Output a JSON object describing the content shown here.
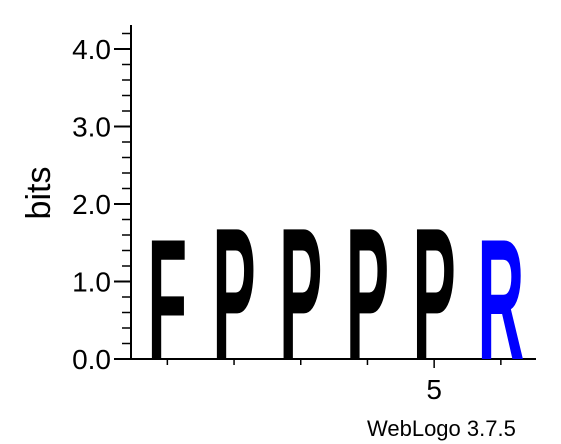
{
  "chart_data": {
    "type": "sequence-logo",
    "ylabel": "bits",
    "ylim": [
      0,
      4.3
    ],
    "y_ticks": [
      {
        "value": 0.0,
        "label": "0.0"
      },
      {
        "value": 1.0,
        "label": "1.0"
      },
      {
        "value": 2.0,
        "label": "2.0"
      },
      {
        "value": 3.0,
        "label": "3.0"
      },
      {
        "value": 4.0,
        "label": "4.0"
      }
    ],
    "x_ticks": [
      {
        "position": 5,
        "label": "5"
      }
    ],
    "positions": [
      {
        "position": 1,
        "letter": "F",
        "bits": 1.6,
        "color": "#000000"
      },
      {
        "position": 2,
        "letter": "P",
        "bits": 1.75,
        "color": "#000000"
      },
      {
        "position": 3,
        "letter": "P",
        "bits": 1.75,
        "color": "#000000"
      },
      {
        "position": 4,
        "letter": "P",
        "bits": 1.75,
        "color": "#000000"
      },
      {
        "position": 5,
        "letter": "P",
        "bits": 1.75,
        "color": "#000000"
      },
      {
        "position": 6,
        "letter": "R",
        "bits": 1.6,
        "color": "#0000ff"
      }
    ],
    "footer": "WebLogo 3.7.5"
  }
}
